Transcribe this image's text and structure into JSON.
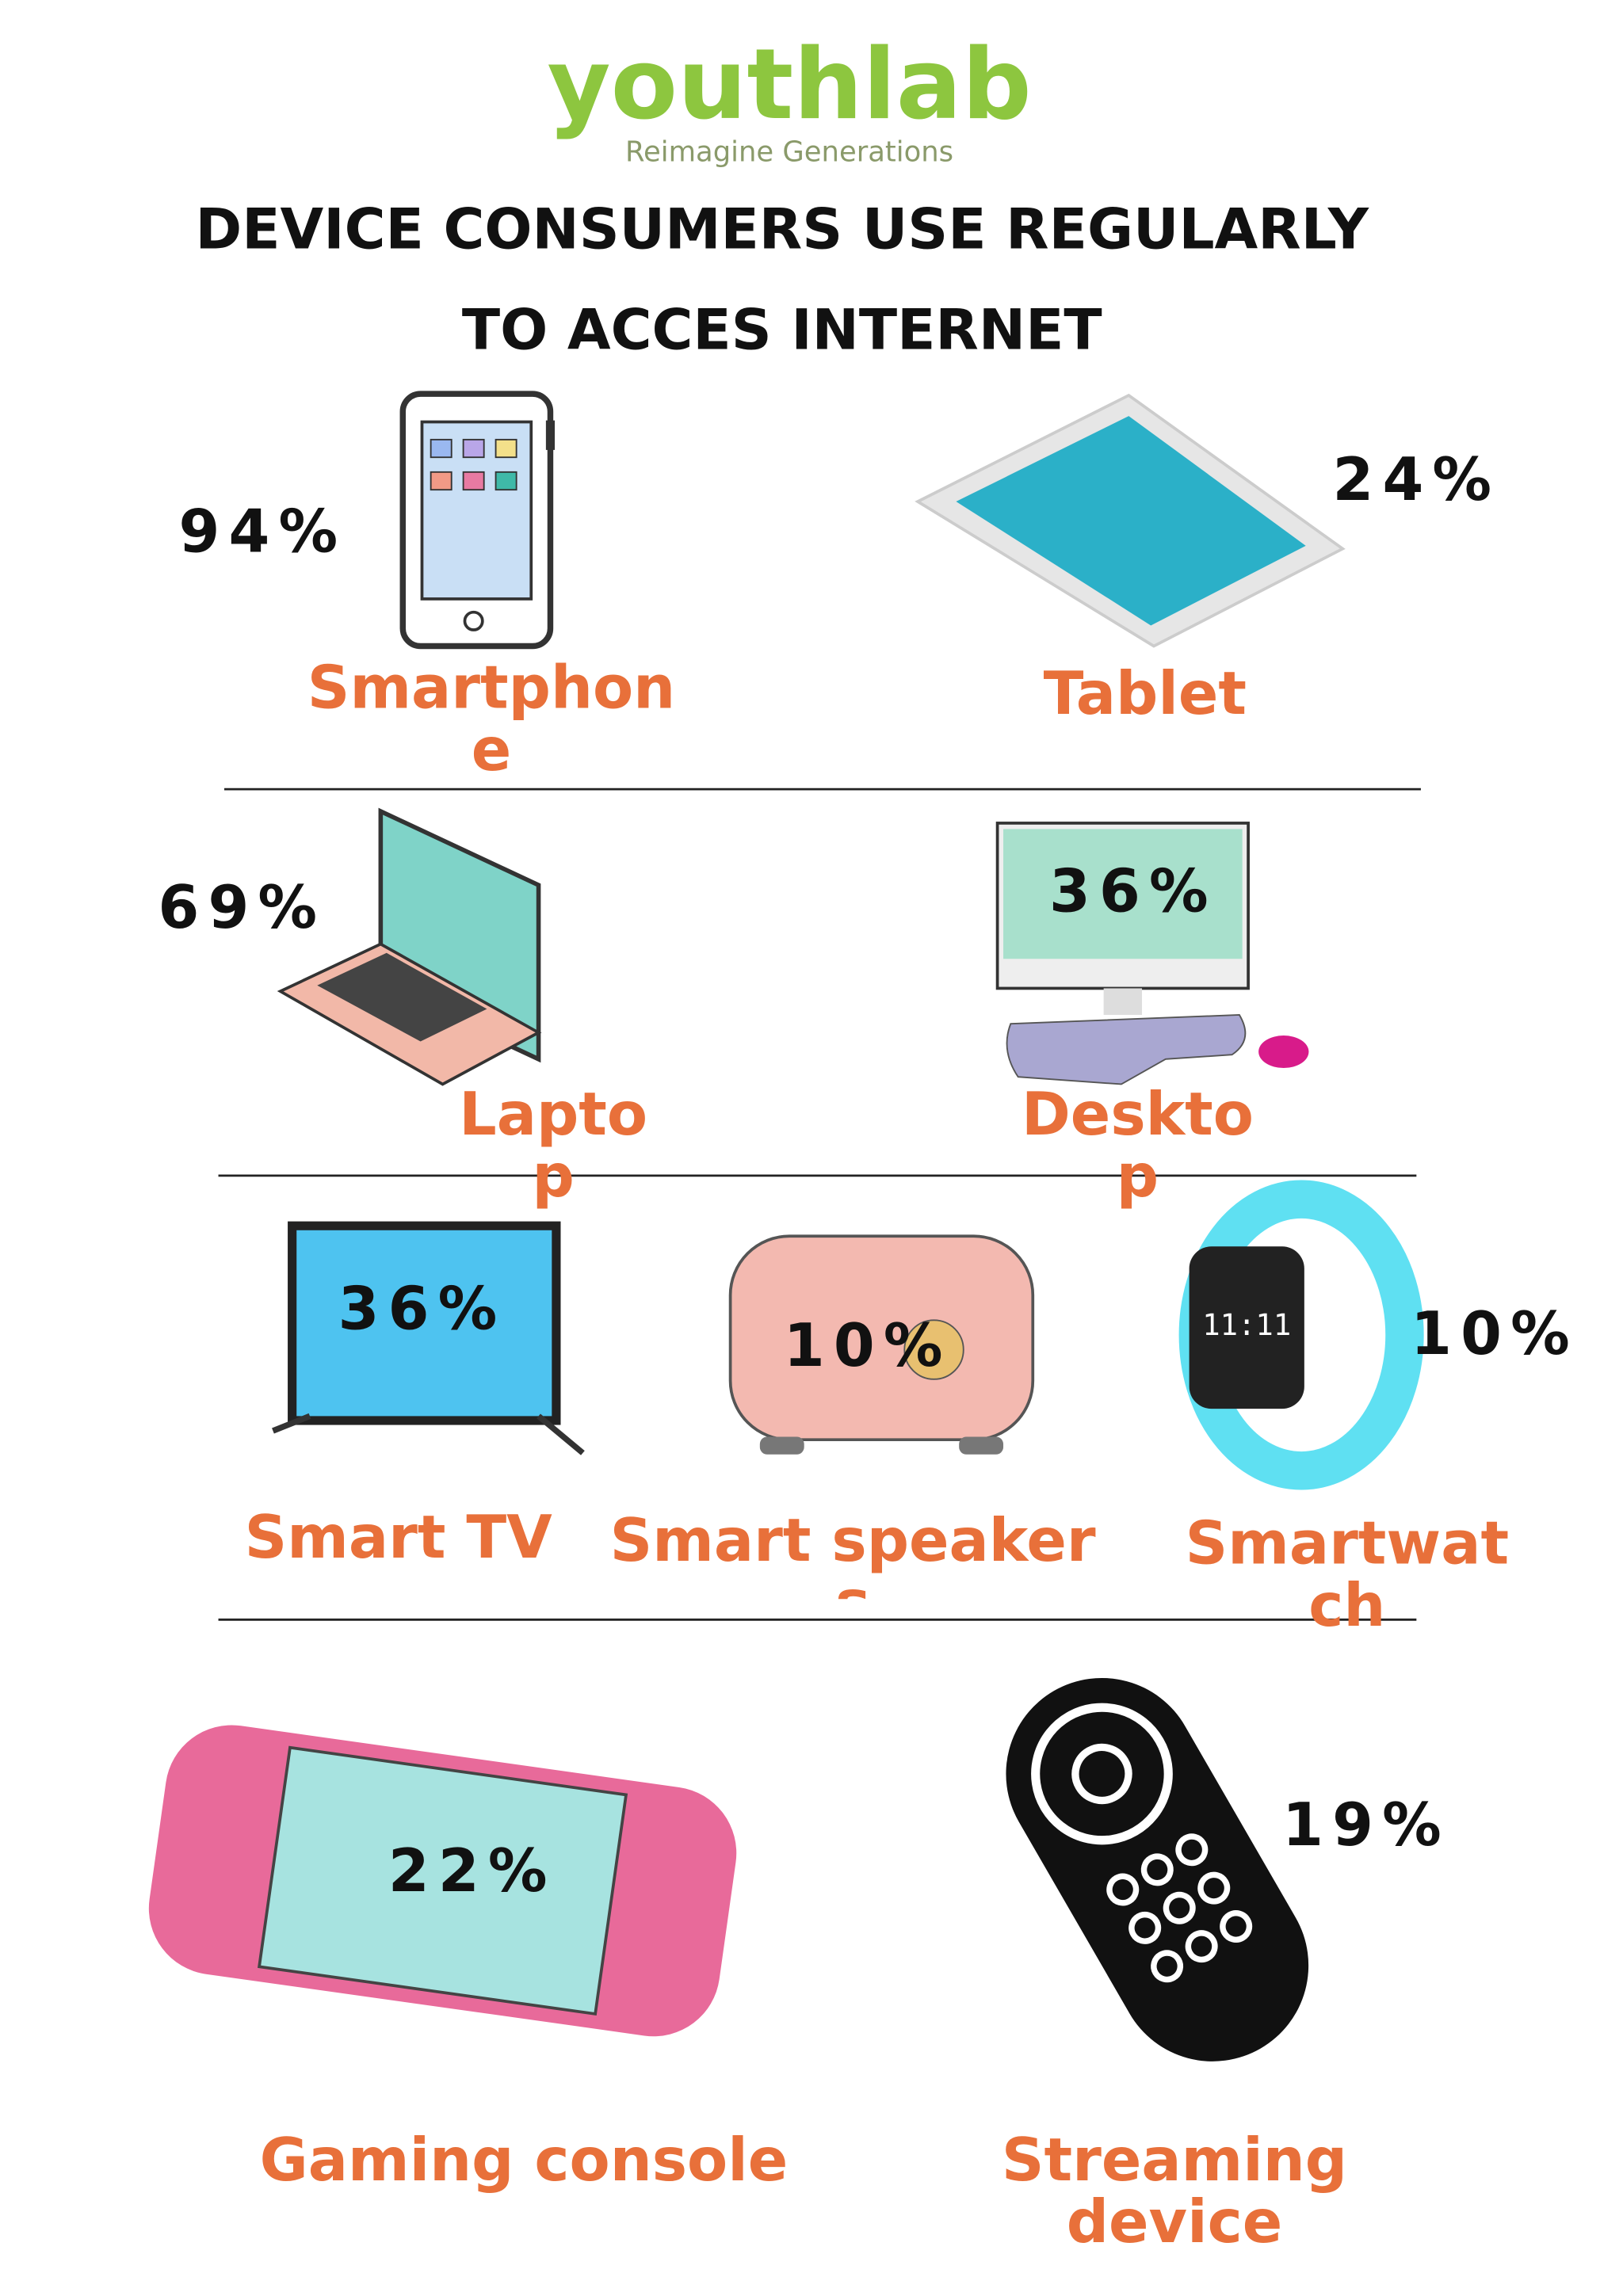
{
  "logo": "youthlab",
  "tagline": "Reimagine Generations",
  "title_lines": [
    "DEVICE CONSUMERS USE REGULARLY",
    "TO ACCES INTERNET"
  ],
  "devices": [
    {
      "label": "Smartphone",
      "value": "94%"
    },
    {
      "label": "Tablet",
      "value": "24%"
    },
    {
      "label": "Laptop",
      "value": "69%"
    },
    {
      "label": "Desktop",
      "value": "36%"
    },
    {
      "label": "Smart TV",
      "value": "36%"
    },
    {
      "label": "Smart speakers",
      "value": "10%"
    },
    {
      "label": "Smartwatch",
      "value": "10%"
    },
    {
      "label": "Gaming console",
      "value": "22%"
    },
    {
      "label": "Streaming device",
      "value": "19%"
    }
  ]
}
